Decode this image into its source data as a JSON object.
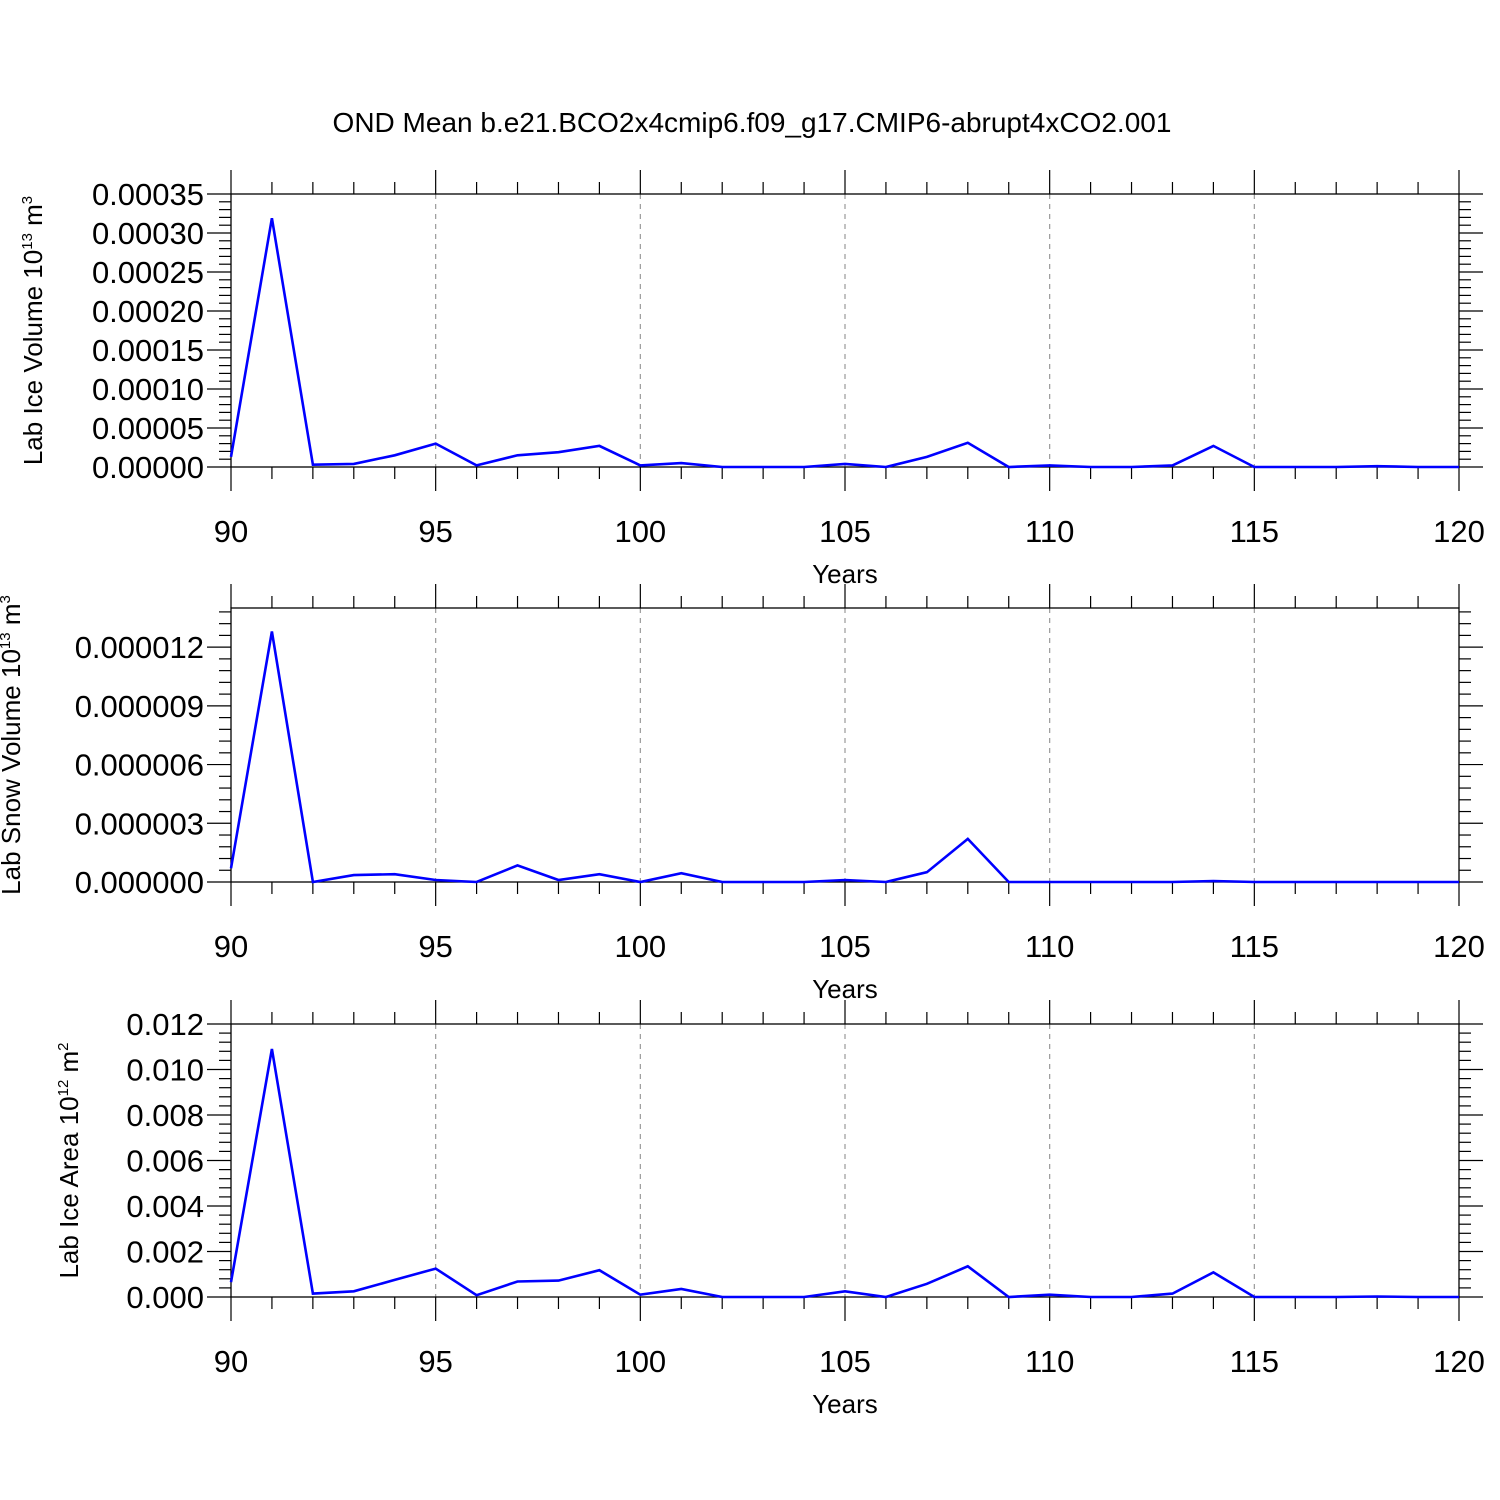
{
  "title": "OND Mean b.e21.BCO2x4cmip6.f09_g17.CMIP6-abrupt4xCO2.001",
  "line_color": "#0000ff",
  "chart_data": [
    {
      "type": "line",
      "xlabel": "Years",
      "ylabel": {
        "text": "Lab Ice Volume 10",
        "sup": "13",
        "unit": " m",
        "unit_sup": "3"
      },
      "xlim": [
        90,
        120
      ],
      "ylim": [
        0,
        0.00035
      ],
      "x_ticks": [
        90,
        95,
        100,
        105,
        110,
        115,
        120
      ],
      "x_tick_labels": [
        "90",
        "95",
        "100",
        "105",
        "110",
        "115",
        "120"
      ],
      "y_ticks": [
        0,
        5e-05,
        0.0001,
        0.00015,
        0.0002,
        0.00025,
        0.0003,
        0.00035
      ],
      "y_tick_labels": [
        "0.00000",
        "0.00005",
        "0.00010",
        "0.00015",
        "0.00020",
        "0.00025",
        "0.00030",
        "0.00035"
      ],
      "grid": "vertical dashed at x major ticks",
      "x": [
        90,
        91,
        92,
        93,
        94,
        95,
        96,
        97,
        98,
        99,
        100,
        101,
        102,
        103,
        104,
        105,
        106,
        107,
        108,
        109,
        110,
        111,
        112,
        113,
        114,
        115,
        116,
        117,
        118,
        119,
        120
      ],
      "values": [
        1.3e-05,
        0.000319,
        3e-06,
        4e-06,
        1.5e-05,
        3e-05,
        2e-06,
        1.5e-05,
        1.9e-05,
        2.7e-05,
        2e-06,
        5e-06,
        0.0,
        0.0,
        0.0,
        4e-06,
        0.0,
        1.3e-05,
        3.1e-05,
        0.0,
        2e-06,
        0.0,
        0.0,
        2e-06,
        2.7e-05,
        0.0,
        0.0,
        0.0,
        1e-06,
        0.0,
        0.0
      ]
    },
    {
      "type": "line",
      "xlabel": "Years",
      "ylabel": {
        "text": "Lab Snow Volume 10",
        "sup": "13",
        "unit": " m",
        "unit_sup": "3"
      },
      "xlim": [
        90,
        120
      ],
      "ylim": [
        0,
        1.4e-05
      ],
      "x_ticks": [
        90,
        95,
        100,
        105,
        110,
        115,
        120
      ],
      "x_tick_labels": [
        "90",
        "95",
        "100",
        "105",
        "110",
        "115",
        "120"
      ],
      "y_ticks": [
        0,
        3e-06,
        6e-06,
        9e-06,
        1.2e-05
      ],
      "y_tick_labels": [
        "0.000000",
        "0.000003",
        "0.000006",
        "0.000009",
        "0.000012"
      ],
      "grid": "vertical dashed at x major ticks",
      "x": [
        90,
        91,
        92,
        93,
        94,
        95,
        96,
        97,
        98,
        99,
        100,
        101,
        102,
        103,
        104,
        105,
        106,
        107,
        108,
        109,
        110,
        111,
        112,
        113,
        114,
        115,
        116,
        117,
        118,
        119,
        120
      ],
      "values": [
        7e-07,
        1.28e-05,
        0.0,
        3.5e-07,
        4e-07,
        1e-07,
        0.0,
        8.5e-07,
        1e-07,
        4e-07,
        0.0,
        4.5e-07,
        0.0,
        0.0,
        0.0,
        1e-07,
        0.0,
        5e-07,
        2.2e-06,
        0.0,
        0.0,
        0.0,
        0.0,
        0.0,
        5e-08,
        0.0,
        0.0,
        0.0,
        0.0,
        0.0,
        0.0
      ]
    },
    {
      "type": "line",
      "xlabel": "Years",
      "ylabel": {
        "text": "Lab Ice Area 10",
        "sup": "12",
        "unit": " m",
        "unit_sup": "2"
      },
      "xlim": [
        90,
        120
      ],
      "ylim": [
        0,
        0.012
      ],
      "x_ticks": [
        90,
        95,
        100,
        105,
        110,
        115,
        120
      ],
      "x_tick_labels": [
        "90",
        "95",
        "100",
        "105",
        "110",
        "115",
        "120"
      ],
      "y_ticks": [
        0,
        0.002,
        0.004,
        0.006,
        0.008,
        0.01,
        0.012
      ],
      "y_tick_labels": [
        "0.000",
        "0.002",
        "0.004",
        "0.006",
        "0.008",
        "0.010",
        "0.012"
      ],
      "grid": "vertical dashed at x major ticks",
      "x": [
        90,
        91,
        92,
        93,
        94,
        95,
        96,
        97,
        98,
        99,
        100,
        101,
        102,
        103,
        104,
        105,
        106,
        107,
        108,
        109,
        110,
        111,
        112,
        113,
        114,
        115,
        116,
        117,
        118,
        119,
        120
      ],
      "values": [
        0.00065,
        0.0109,
        0.00015,
        0.00025,
        0.00075,
        0.00125,
        8e-05,
        0.00068,
        0.00072,
        0.00118,
        0.0001,
        0.00035,
        0.0,
        0.0,
        0.0,
        0.00025,
        0.0,
        0.00058,
        0.00135,
        0.0,
        0.0001,
        0.0,
        0.0,
        0.00015,
        0.00108,
        0.0,
        0.0,
        0.0,
        2e-05,
        0.0,
        0.0
      ]
    }
  ]
}
